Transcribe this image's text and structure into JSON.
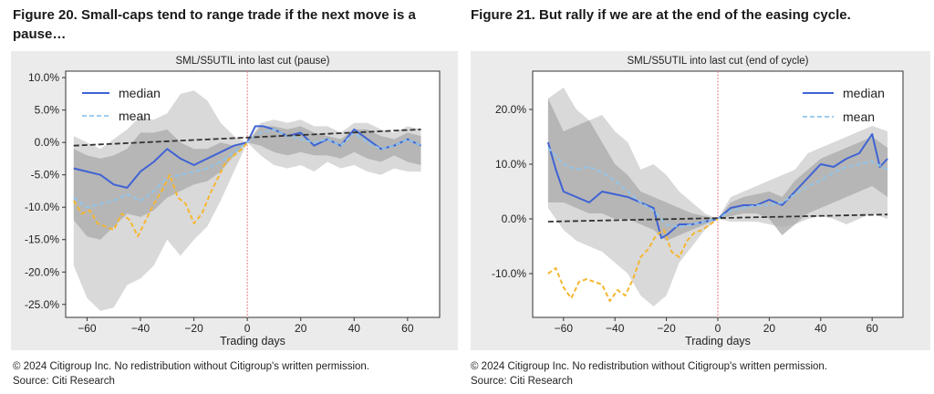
{
  "figures": [
    {
      "title": "Figure 20. Small-caps tend to range trade if the next move is a pause…",
      "copyright": "© 2024 Citigroup Inc. No redistribution without Citigroup's written permission.",
      "source": "Source: Citi Research"
    },
    {
      "title": "Figure 21. But rally if we are at the end of the easing cycle.",
      "copyright": "© 2024 Citigroup Inc. No redistribution without Citigroup's written permission.",
      "source": "Source: Citi Research"
    }
  ],
  "colors": {
    "median": "#3f63d4",
    "mean": "#8fc6ee",
    "yellow": "#f5b731",
    "band_outer": "#d9d9d9",
    "band_inner": "#a9a9a9",
    "trend": "#333333",
    "vline": "#e8767c"
  },
  "chart_data": [
    {
      "type": "line",
      "title": "SML/S5UTIL into last cut (pause)",
      "xlabel": "Trading days",
      "ylabel": "",
      "xlim": [
        -68,
        72
      ],
      "ylim": [
        -27,
        11
      ],
      "xticks": [
        -60,
        -40,
        -20,
        0,
        20,
        40,
        60
      ],
      "xtick_labels": [
        "−60",
        "−40",
        "−20",
        "0",
        "20",
        "40",
        "60"
      ],
      "yticks": [
        10,
        5,
        0,
        -5,
        -10,
        -15,
        -20,
        -25
      ],
      "ytick_labels": [
        "10.0%",
        "5.0%",
        "0.0%",
        "-5.0%",
        "-10.0%",
        "-15.0%",
        "-20.0%",
        "-25.0%"
      ],
      "legend_position": "top-left",
      "vline_x": 0,
      "series": [
        {
          "name": "median",
          "style": "solid",
          "x": [
            -65,
            -60,
            -55,
            -50,
            -45,
            -40,
            -35,
            -30,
            -25,
            -20,
            -15,
            -10,
            -5,
            0,
            3,
            6,
            10,
            15,
            20,
            25,
            30,
            35,
            40,
            45,
            50,
            55,
            60,
            65
          ],
          "y": [
            -4.0,
            -4.5,
            -5.0,
            -6.5,
            -7.0,
            -4.5,
            -3.0,
            -1.0,
            -2.5,
            -3.5,
            -2.5,
            -1.5,
            -0.5,
            0,
            2.5,
            2.5,
            2.0,
            1.0,
            1.5,
            -0.5,
            0.5,
            -0.5,
            2.0,
            0.5,
            -1.0,
            -0.5,
            0.5,
            -0.5
          ]
        },
        {
          "name": "mean",
          "style": "dashed",
          "x": [
            -65,
            -60,
            -55,
            -50,
            -45,
            -40,
            -35,
            -30,
            -25,
            -20,
            -15,
            -10,
            -5,
            0,
            5,
            10,
            15,
            20,
            25,
            30,
            35,
            40,
            45,
            50,
            55,
            60,
            65
          ],
          "y": [
            -8.5,
            -10.0,
            -9.5,
            -9.0,
            -8.0,
            -9.0,
            -7.5,
            -5.5,
            -5.0,
            -4.5,
            -4.0,
            -3.0,
            -1.5,
            0,
            1.5,
            2.0,
            1.0,
            0.5,
            0.0,
            0.5,
            -0.5,
            1.5,
            0.0,
            -1.0,
            -0.5,
            0.5,
            -0.5
          ]
        },
        {
          "name": "",
          "style": "dashed-yellow",
          "x": [
            -65,
            -62,
            -59,
            -56,
            -53,
            -50,
            -47,
            -44,
            -41,
            -38,
            -35,
            -32,
            -29,
            -26,
            -23,
            -20,
            -17,
            -14,
            -11,
            -8,
            -5,
            -2,
            0
          ],
          "y": [
            -9.0,
            -11.0,
            -10.5,
            -12.5,
            -13.0,
            -13.5,
            -11.0,
            -12.0,
            -14.5,
            -12.0,
            -9.5,
            -7.5,
            -5.0,
            -8.5,
            -9.5,
            -12.5,
            -11.0,
            -8.0,
            -5.5,
            -3.0,
            -2.0,
            -1.0,
            0
          ]
        },
        {
          "name": "",
          "style": "trend",
          "x": [
            -65,
            65
          ],
          "y": [
            -0.5,
            2.0
          ]
        }
      ],
      "bands": [
        {
          "name": "",
          "level": "outer",
          "x": [
            -65,
            -60,
            -55,
            -50,
            -45,
            -40,
            -35,
            -30,
            -25,
            -20,
            -15,
            -10,
            -5,
            0,
            5,
            10,
            15,
            20,
            25,
            30,
            35,
            40,
            45,
            50,
            55,
            60,
            65
          ],
          "upper": [
            1.0,
            0.0,
            -1.0,
            0.5,
            2.0,
            4.0,
            3.5,
            4.5,
            7.5,
            8.0,
            6.5,
            3.0,
            1.0,
            0,
            3.0,
            3.5,
            3.0,
            3.5,
            2.5,
            2.5,
            1.5,
            3.0,
            3.0,
            2.0,
            1.5,
            2.5,
            2.0
          ],
          "lower": [
            -19.0,
            -24.0,
            -26.0,
            -25.5,
            -22.0,
            -21.0,
            -19.0,
            -15.0,
            -17.5,
            -15.0,
            -13.0,
            -9.0,
            -4.5,
            0,
            -2.0,
            -3.5,
            -4.0,
            -3.5,
            -4.5,
            -3.0,
            -4.0,
            -3.5,
            -4.5,
            -5.0,
            -4.0,
            -4.5,
            -4.5
          ]
        },
        {
          "name": "",
          "level": "inner",
          "x": [
            -65,
            -60,
            -55,
            -50,
            -45,
            -40,
            -35,
            -30,
            -25,
            -20,
            -15,
            -10,
            -5,
            0,
            5,
            10,
            15,
            20,
            25,
            30,
            35,
            40,
            45,
            50,
            55,
            60,
            65
          ],
          "upper": [
            -1.0,
            -2.0,
            -2.5,
            -2.0,
            -1.0,
            1.5,
            1.5,
            2.0,
            0.0,
            -1.0,
            -1.0,
            0.0,
            -0.5,
            0,
            2.5,
            2.5,
            2.0,
            2.5,
            1.5,
            1.0,
            0.5,
            2.0,
            2.0,
            1.0,
            0.5,
            1.5,
            1.0
          ],
          "lower": [
            -12.0,
            -14.5,
            -15.0,
            -13.0,
            -11.0,
            -11.5,
            -10.5,
            -8.5,
            -7.5,
            -6.5,
            -6.0,
            -4.5,
            -2.0,
            0,
            -0.5,
            -1.5,
            -2.0,
            -1.5,
            -2.0,
            -2.0,
            -2.5,
            -1.5,
            -2.5,
            -3.0,
            -2.0,
            -3.0,
            -3.5
          ]
        }
      ]
    },
    {
      "type": "line",
      "title": "SML/S5UTIL into last cut (end of cycle)",
      "xlabel": "Trading days",
      "ylabel": "",
      "xlim": [
        -72,
        72
      ],
      "ylim": [
        -18,
        27
      ],
      "xticks": [
        -60,
        -40,
        -20,
        0,
        20,
        40,
        60
      ],
      "xtick_labels": [
        "−60",
        "−40",
        "−20",
        "0",
        "20",
        "40",
        "60"
      ],
      "yticks": [
        20,
        10,
        0,
        -10
      ],
      "ytick_labels": [
        "20.0%",
        "10.0%",
        "0.0%",
        "-10.0%"
      ],
      "legend_position": "top-right",
      "vline_x": 0,
      "series": [
        {
          "name": "median",
          "style": "solid",
          "x": [
            -66,
            -63,
            -60,
            -55,
            -50,
            -45,
            -40,
            -35,
            -30,
            -25,
            -22,
            -20,
            -15,
            -10,
            -5,
            0,
            5,
            10,
            15,
            20,
            25,
            30,
            35,
            40,
            45,
            50,
            55,
            60,
            63,
            66
          ],
          "y": [
            14.0,
            9.0,
            5.0,
            4.0,
            3.0,
            5.0,
            4.5,
            4.0,
            3.0,
            2.0,
            -3.5,
            -3.0,
            -1.0,
            -1.0,
            -0.5,
            0,
            2.0,
            2.5,
            2.5,
            3.5,
            2.5,
            5.0,
            7.5,
            10.0,
            9.5,
            11.0,
            12.0,
            15.5,
            9.5,
            11.0
          ]
        },
        {
          "name": "mean",
          "style": "dashed",
          "x": [
            -66,
            -60,
            -55,
            -50,
            -45,
            -40,
            -35,
            -30,
            -25,
            -20,
            -15,
            -10,
            -5,
            0,
            5,
            10,
            15,
            20,
            25,
            30,
            35,
            40,
            45,
            50,
            55,
            60,
            66
          ],
          "y": [
            13.0,
            10.0,
            9.0,
            9.5,
            8.5,
            7.0,
            5.0,
            3.0,
            1.5,
            -1.0,
            -1.5,
            -1.0,
            -0.5,
            0,
            1.5,
            2.0,
            2.5,
            2.5,
            3.0,
            4.5,
            6.0,
            7.0,
            8.5,
            9.5,
            10.0,
            10.5,
            9.0
          ]
        },
        {
          "name": "",
          "style": "dashed-yellow",
          "x": [
            -66,
            -63,
            -60,
            -57,
            -54,
            -51,
            -48,
            -45,
            -42,
            -39,
            -36,
            -33,
            -30,
            -27,
            -24,
            -21,
            -18,
            -15,
            -12,
            -9,
            -6,
            -3,
            0
          ],
          "y": [
            -10.0,
            -9.0,
            -12.5,
            -14.5,
            -11.5,
            -11.0,
            -11.5,
            -12.0,
            -15.0,
            -13.0,
            -14.0,
            -11.0,
            -7.0,
            -5.5,
            -3.0,
            -2.0,
            -6.0,
            -7.0,
            -4.0,
            -2.5,
            -2.0,
            -1.0,
            0
          ]
        },
        {
          "name": "",
          "style": "trend",
          "x": [
            -66,
            66
          ],
          "y": [
            -0.5,
            0.8
          ]
        }
      ],
      "bands": [
        {
          "name": "",
          "level": "outer",
          "x": [
            -66,
            -60,
            -55,
            -50,
            -45,
            -40,
            -35,
            -30,
            -25,
            -20,
            -15,
            -10,
            -5,
            0,
            5,
            10,
            15,
            20,
            25,
            30,
            35,
            40,
            45,
            50,
            55,
            60,
            66
          ],
          "upper": [
            22.0,
            24.0,
            20.0,
            18.0,
            19.0,
            16.0,
            14.0,
            9.0,
            10.0,
            8.0,
            5.0,
            3.0,
            1.0,
            0,
            4.0,
            5.0,
            6.0,
            7.0,
            8.0,
            9.0,
            12.0,
            13.0,
            14.0,
            15.0,
            16.0,
            17.0,
            16.0
          ],
          "lower": [
            2.0,
            -2.0,
            -4.0,
            -5.0,
            -6.0,
            -8.0,
            -10.0,
            -14.0,
            -16.0,
            -14.0,
            -8.0,
            -5.0,
            -2.0,
            0,
            -0.5,
            -0.5,
            -0.5,
            -1.0,
            -1.5,
            -1.0,
            0.0,
            0.5,
            0.0,
            -1.0,
            0.0,
            1.0,
            0.0
          ]
        },
        {
          "name": "",
          "level": "inner",
          "x": [
            -66,
            -60,
            -55,
            -50,
            -45,
            -40,
            -35,
            -30,
            -25,
            -20,
            -15,
            -10,
            -5,
            0,
            5,
            10,
            15,
            20,
            25,
            30,
            35,
            40,
            45,
            50,
            55,
            60,
            66
          ],
          "upper": [
            22.0,
            16.0,
            17.0,
            18.0,
            14.0,
            10.0,
            8.0,
            5.0,
            4.0,
            3.0,
            2.0,
            1.0,
            0.5,
            0,
            3.0,
            4.0,
            4.5,
            5.0,
            4.0,
            7.0,
            9.0,
            11.0,
            12.0,
            13.0,
            14.0,
            15.0,
            13.0
          ],
          "lower": [
            3.0,
            3.0,
            2.0,
            1.0,
            1.0,
            0.0,
            0.0,
            -1.0,
            -2.0,
            -4.0,
            -3.0,
            -2.0,
            -1.0,
            0,
            0.5,
            1.0,
            1.0,
            0.0,
            -3.0,
            -1.0,
            1.0,
            2.0,
            3.0,
            4.0,
            5.0,
            6.0,
            4.0
          ]
        }
      ]
    }
  ]
}
